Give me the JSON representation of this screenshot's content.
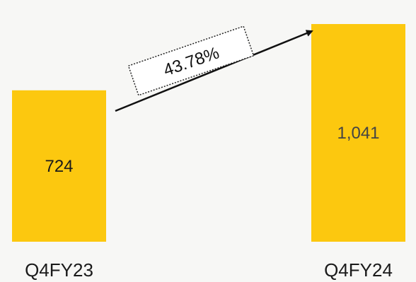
{
  "chart_data": {
    "type": "bar",
    "categories": [
      "Q4FY23",
      "Q4FY24"
    ],
    "values": [
      724,
      1041
    ],
    "value_labels": [
      "724",
      "1,041"
    ],
    "annotation": {
      "text": "43.78%"
    },
    "colors": {
      "bar": "#FCC80F",
      "arrow": "#111111",
      "background": "#F7F7F5"
    }
  }
}
